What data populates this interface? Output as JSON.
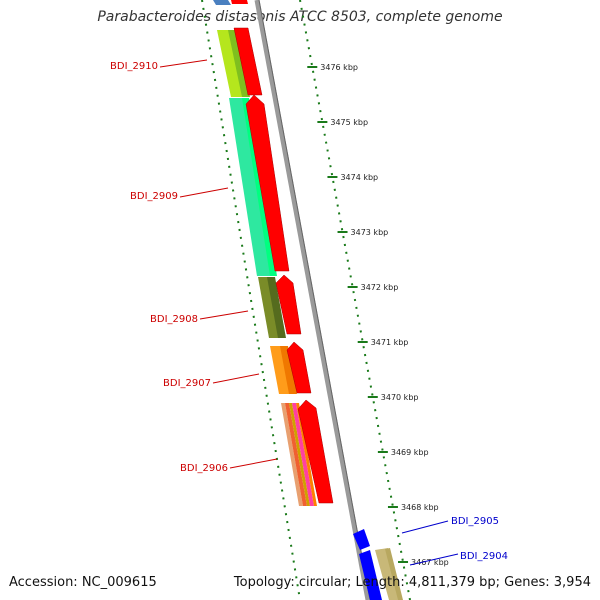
{
  "title": "Parabacteroides distasonis ATCC 8503, complete genome",
  "footer": {
    "accession": "Accession: NC_009615",
    "summary": "Topology: circular; Length: 4,811,379 bp; Genes: 3,954"
  },
  "ticks": [
    {
      "label": "3476 kbp",
      "kbp": 3476
    },
    {
      "label": "3475 kbp",
      "kbp": 3475
    },
    {
      "label": "3474 kbp",
      "kbp": 3474
    },
    {
      "label": "3473 kbp",
      "kbp": 3473
    },
    {
      "label": "3472 kbp",
      "kbp": 3472
    },
    {
      "label": "3471 kbp",
      "kbp": 3471
    },
    {
      "label": "3470 kbp",
      "kbp": 3470
    },
    {
      "label": "3469 kbp",
      "kbp": 3469
    },
    {
      "label": "3468 kbp",
      "kbp": 3468
    },
    {
      "label": "3467 kbp",
      "kbp": 3467
    }
  ],
  "genes": [
    {
      "label": "BDI_2910",
      "strand": "reverse",
      "label_color": "#cc0000",
      "feature_colors": [
        "#b5e61d",
        "#7fbf1f"
      ]
    },
    {
      "label": "BDI_2909",
      "strand": "reverse",
      "label_color": "#cc0000",
      "feature_colors": [
        "#2ee8a0",
        "#00ff80"
      ]
    },
    {
      "label": "BDI_2908",
      "strand": "reverse",
      "label_color": "#cc0000",
      "feature_colors": [
        "#7a8c28",
        "#556b1e"
      ]
    },
    {
      "label": "BDI_2907",
      "strand": "reverse",
      "label_color": "#cc0000",
      "feature_colors": [
        "#ff9c1a",
        "#f07800"
      ]
    },
    {
      "label": "BDI_2906",
      "strand": "reverse",
      "label_color": "#cc0000",
      "feature_colors": [
        "#e8a070",
        "#f06030",
        "#ff40a0",
        "#d0a000",
        "#ff8000"
      ]
    },
    {
      "label": "BDI_2905",
      "strand": "forward",
      "label_color": "#0000cc",
      "feature_colors": [
        "#0000ff"
      ]
    },
    {
      "label": "BDI_2904",
      "strand": "forward",
      "label_color": "#0000cc",
      "feature_colors": [
        "#0000ff",
        "#c8b878"
      ]
    }
  ],
  "colors": {
    "cds_reverse": "#ff0000",
    "cds_forward": "#0000ff",
    "backbone": "#808080",
    "tick": "#1a7a1a"
  }
}
